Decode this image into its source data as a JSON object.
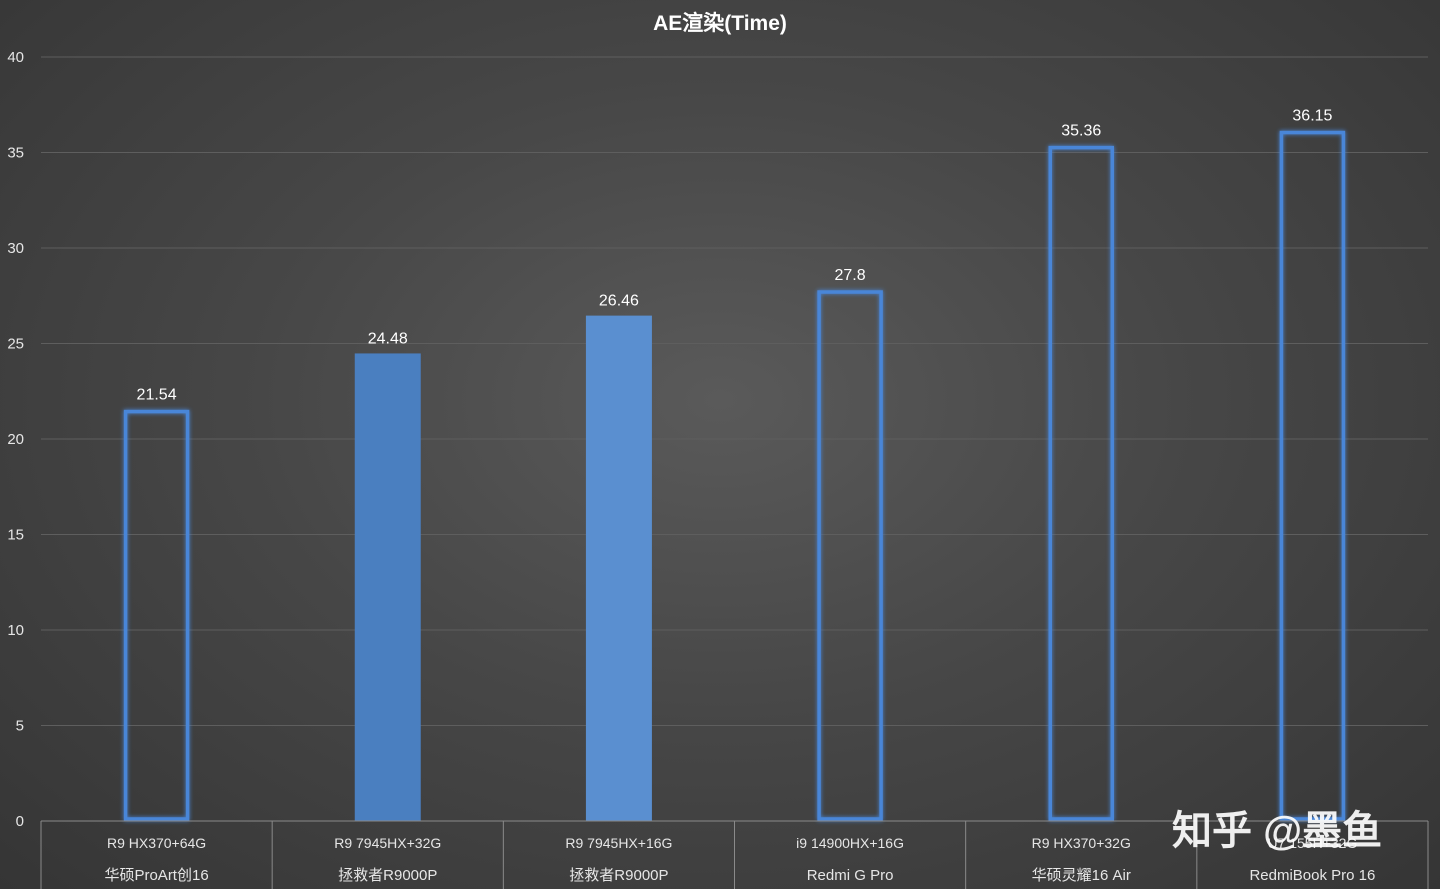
{
  "chart_data": {
    "type": "bar",
    "title": "AE渲染(Time)",
    "xlabel": "",
    "ylabel": "",
    "ylim": [
      0,
      40
    ],
    "yticks": [
      0,
      5,
      10,
      15,
      20,
      25,
      30,
      35,
      40
    ],
    "grid": true,
    "categories": [
      [
        "R9 HX370+64G",
        "华硕ProArt创16"
      ],
      [
        "R9 7945HX+32G",
        "拯救者R9000P"
      ],
      [
        "R9 7945HX+16G",
        "拯救者R9000P"
      ],
      [
        "i9 14900HX+16G",
        "Redmi G Pro"
      ],
      [
        "R9 HX370+32G",
        "华硕灵耀16 Air"
      ],
      [
        "U7 155H+32G",
        "RedmiBook Pro 16"
      ]
    ],
    "values": [
      21.54,
      24.48,
      26.46,
      27.8,
      35.36,
      36.15
    ],
    "data_labels": [
      "21.54",
      "24.48",
      "26.46",
      "27.8",
      "35.36",
      "36.15"
    ],
    "bar_styles": [
      "outline",
      "filled",
      "filled",
      "outline",
      "outline",
      "outline"
    ],
    "colors": {
      "outline": "#4a86d8",
      "fill_dark": "#4a7fc0",
      "fill_light": "#5a8fd0",
      "grid": "#5e5e5e",
      "axis_text": "#e6e6e6",
      "category_grid": "#8a8a8a"
    }
  },
  "watermark": {
    "text": "知乎 @墨鱼"
  }
}
